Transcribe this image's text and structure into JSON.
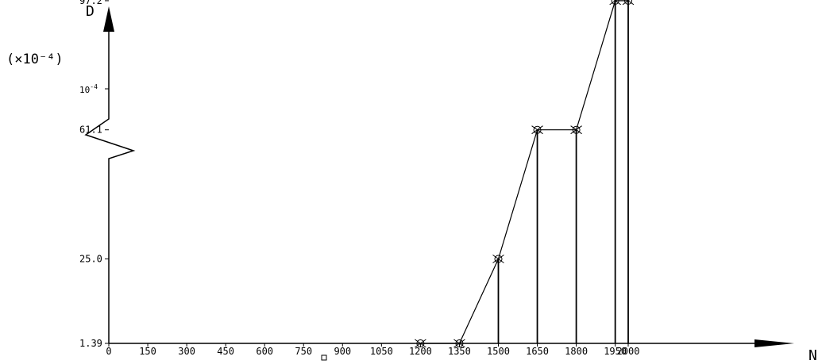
{
  "chart_data": {
    "type": "line",
    "ylabel": "D",
    "ylabel_unit": "(×10⁻⁴)",
    "xlabel": "N",
    "y_break_tick": {
      "label_base": "10",
      "label_exp": "-4"
    },
    "x_ticks": [
      0,
      150,
      300,
      450,
      600,
      750,
      900,
      1050,
      1200,
      1350,
      1500,
      1650,
      1800,
      1950,
      2000
    ],
    "y_ticks": [
      1.39,
      25.0,
      61.1,
      97.2
    ],
    "y_tick_labels": [
      "1.39",
      "25.0",
      "61.1",
      "97.2"
    ],
    "axis_break": "y",
    "series": [
      {
        "x": [
          1200,
          1350,
          1500,
          1650,
          1800,
          1950,
          2000
        ],
        "y": [
          1.39,
          1.39,
          25.0,
          61.1,
          61.1,
          97.2,
          97.2
        ],
        "marker": "circle-x",
        "drop_lines": true
      }
    ],
    "colors": {
      "line": "#000000",
      "background": "#ffffff"
    }
  }
}
